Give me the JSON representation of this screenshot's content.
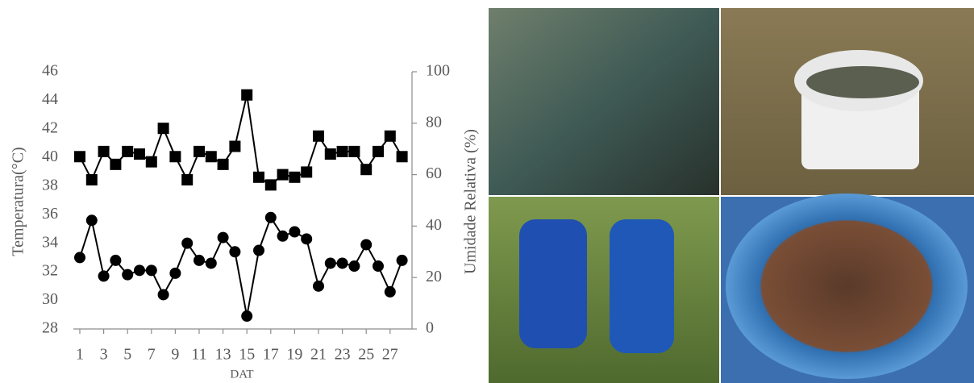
{
  "chart_data": {
    "type": "line",
    "xlabel": "DAT",
    "ylabel": "Temperatura(°C)",
    "y2label": "Umidade Relativa (%)",
    "x": [
      1,
      2,
      3,
      4,
      5,
      6,
      7,
      8,
      9,
      10,
      11,
      12,
      13,
      14,
      15,
      16,
      17,
      18,
      19,
      20,
      21,
      22,
      23,
      24,
      25,
      26,
      27,
      28
    ],
    "xlim": [
      0.5,
      28.5
    ],
    "xticks": [
      1,
      3,
      5,
      7,
      9,
      11,
      13,
      15,
      17,
      19,
      21,
      23,
      25,
      27
    ],
    "ylim": [
      28,
      46
    ],
    "yticks": [
      28,
      30,
      32,
      34,
      36,
      38,
      40,
      42,
      44,
      46
    ],
    "y2lim": [
      0,
      100
    ],
    "y2ticks": [
      0,
      20,
      40,
      60,
      80,
      100
    ],
    "series": [
      {
        "color": "#000000",
        "marker": "circle",
        "axis": "y",
        "values": [
          33.0,
          35.6,
          31.7,
          32.8,
          31.8,
          32.1,
          32.1,
          30.4,
          31.9,
          34.0,
          32.8,
          32.6,
          34.4,
          33.4,
          28.9,
          33.5,
          35.8,
          34.5,
          34.8,
          34.3,
          31.0,
          32.6,
          32.6,
          32.4,
          33.9,
          32.4,
          30.6,
          32.8
        ]
      },
      {
        "color": "#000000",
        "marker": "square",
        "axis": "y2",
        "values": [
          67,
          58,
          69,
          64,
          69,
          68,
          65,
          78,
          67,
          58,
          69,
          67,
          64,
          71,
          91,
          59,
          56,
          60,
          59,
          61,
          75,
          68,
          69,
          69,
          62,
          69,
          75,
          67
        ]
      }
    ]
  }
}
